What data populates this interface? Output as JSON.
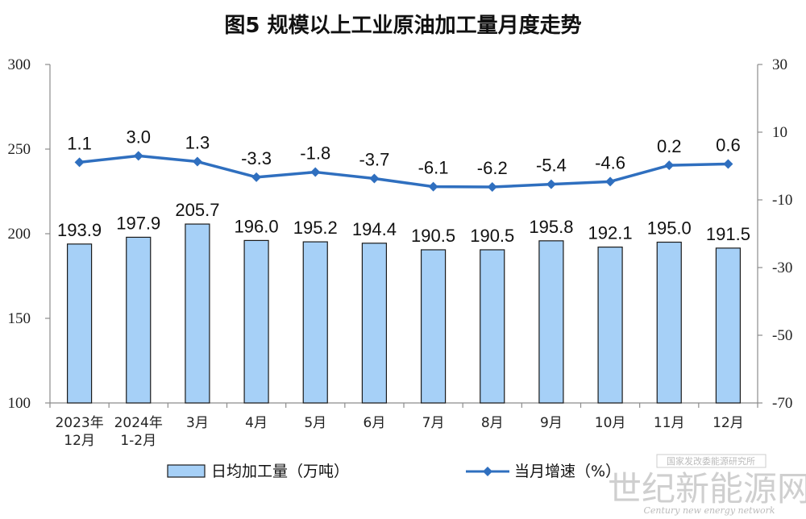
{
  "chart_data": {
    "type": "bar+line",
    "title": "图5  规模以上工业原油加工量月度走势",
    "categories": [
      [
        "2023年",
        "12月"
      ],
      [
        "2024年",
        "1-2月"
      ],
      [
        "3月"
      ],
      [
        "4月"
      ],
      [
        "5月"
      ],
      [
        "6月"
      ],
      [
        "7月"
      ],
      [
        "8月"
      ],
      [
        "9月"
      ],
      [
        "10月"
      ],
      [
        "11月"
      ],
      [
        "12月"
      ]
    ],
    "series": [
      {
        "name": "日均加工量（万吨）",
        "type": "bar",
        "axis": "left",
        "values": [
          193.9,
          197.9,
          205.7,
          196.0,
          195.2,
          194.4,
          190.5,
          190.5,
          195.8,
          192.1,
          195.0,
          191.5
        ],
        "labels": [
          "193.9",
          "197.9",
          "205.7",
          "196.0",
          "195.2",
          "194.4",
          "190.5",
          "190.5",
          "195.8",
          "192.1",
          "195.0",
          "191.5"
        ]
      },
      {
        "name": "当月增速（%）",
        "type": "line",
        "axis": "right",
        "values": [
          1.1,
          3.0,
          1.3,
          -3.3,
          -1.8,
          -3.7,
          -6.1,
          -6.2,
          -5.4,
          -4.6,
          0.2,
          0.6
        ],
        "labels": [
          "1.1",
          "3.0",
          "1.3",
          "-3.3",
          "-1.8",
          "-3.7",
          "-6.1",
          "-6.2",
          "-5.4",
          "-4.6",
          "0.2",
          "0.6"
        ]
      }
    ],
    "y_left": {
      "min": 100,
      "max": 300,
      "ticks": [
        "100",
        "150",
        "200",
        "250",
        "300"
      ]
    },
    "y_right": {
      "min": -70,
      "max": 30,
      "ticks": [
        "-70",
        "-50",
        "-30",
        "-10",
        "10",
        "30"
      ]
    },
    "grid": false,
    "legend": "bottom-center",
    "colors": {
      "bar_fill": "#a6d0f7",
      "bar_stroke": "#1a1a1a",
      "line": "#2f6fbf",
      "axis": "#8c8c8c"
    }
  },
  "watermark": {
    "top": "国家发改委能源研究所",
    "main": "世纪新能源网",
    "sub": "Century new energy network"
  }
}
